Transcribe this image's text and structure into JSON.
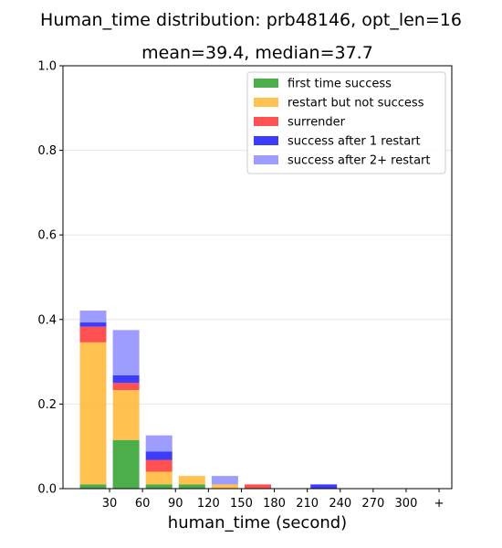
{
  "chart_data": {
    "type": "bar",
    "stacked": true,
    "title": "Human_time distribution: prb48146, opt_len=16",
    "subtitle": "mean=39.4, median=37.7",
    "xlabel": "human_time (second)",
    "ylabel": "",
    "ylim": [
      0,
      1.0
    ],
    "yticks": [
      "0.0",
      "0.2",
      "0.4",
      "0.6",
      "0.8",
      "1.0"
    ],
    "xticks": [
      "30",
      "60",
      "90",
      "120",
      "150",
      "180",
      "210",
      "240",
      "270",
      "300",
      "+"
    ],
    "categories": [
      "0-30",
      "30-60",
      "60-90",
      "90-120",
      "120-150",
      "150-180",
      "180-210",
      "210-240",
      "240-270",
      "270-300",
      "300+"
    ],
    "grid": true,
    "legend_position": "top-right",
    "series": [
      {
        "name": "first time success",
        "color": "#2ca02c",
        "values": [
          0.01,
          0.115,
          0.01,
          0.01,
          0,
          0,
          0,
          0,
          0,
          0,
          0
        ]
      },
      {
        "name": "restart but not success",
        "color": "#ffb733",
        "values": [
          0.336,
          0.118,
          0.03,
          0.02,
          0.01,
          0,
          0,
          0,
          0,
          0,
          0
        ]
      },
      {
        "name": "surrender",
        "color": "#ff3333",
        "values": [
          0.037,
          0.017,
          0.028,
          0,
          0,
          0.01,
          0,
          0,
          0,
          0,
          0
        ]
      },
      {
        "name": "success after 1 restart",
        "color": "#1a1aff",
        "values": [
          0.01,
          0.018,
          0.02,
          0,
          0,
          0,
          0,
          0.01,
          0,
          0,
          0
        ]
      },
      {
        "name": "success after 2+ restart",
        "color": "#8c8cff",
        "values": [
          0.028,
          0.107,
          0.038,
          0,
          0.02,
          0,
          0,
          0,
          0,
          0,
          0
        ]
      }
    ]
  }
}
